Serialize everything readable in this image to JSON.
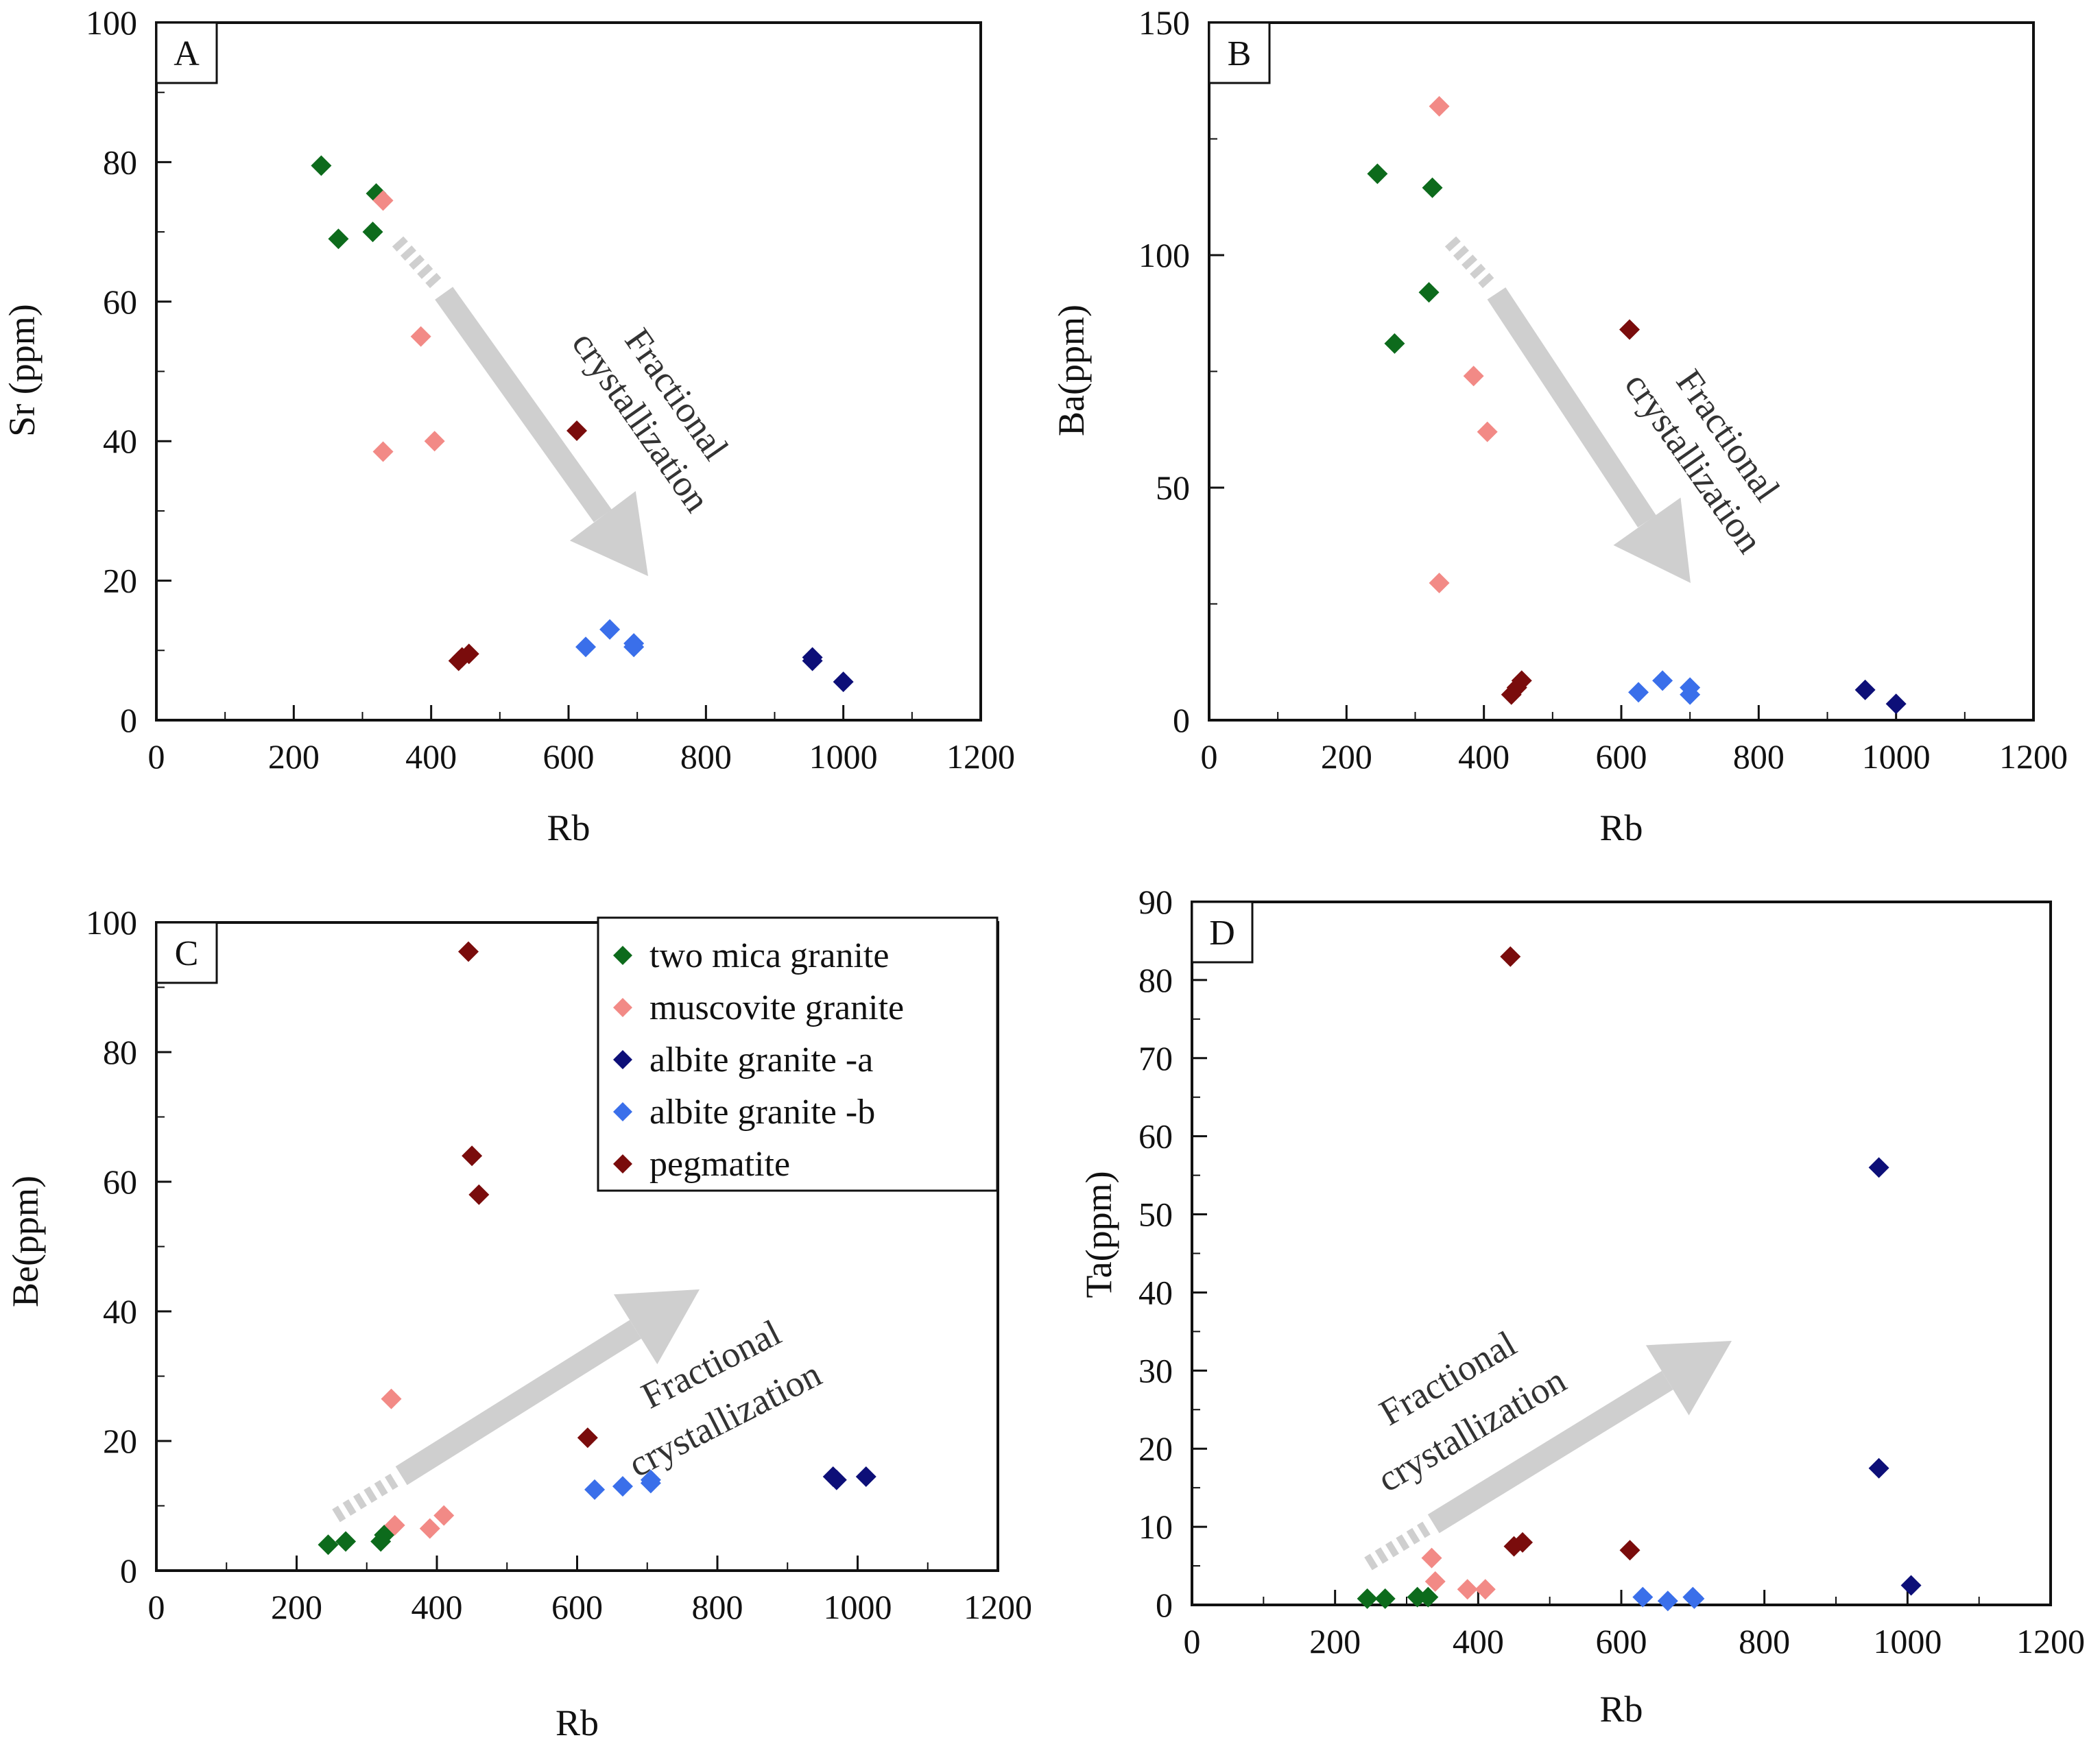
{
  "figure_title": "",
  "colors": {
    "two_mica": "#0d6b1c",
    "muscovite": "#f28a86",
    "albite_a": "#0d0f78",
    "albite_b": "#3a6fea",
    "pegmatite": "#7a0c0c",
    "arrow": "#cfcfcf"
  },
  "legend": {
    "entries": [
      {
        "series": "two_mica",
        "label": "two mica granite"
      },
      {
        "series": "muscovite",
        "label": "muscovite granite"
      },
      {
        "series": "albite_a",
        "label": "albite granite -a"
      },
      {
        "series": "albite_b",
        "label": "albite granite -b"
      },
      {
        "series": "pegmatite",
        "label": "pegmatite"
      }
    ]
  },
  "chart_data": [
    {
      "panel": "A",
      "type": "scatter",
      "xlabel": "Rb",
      "ylabel": "Sr (ppm)",
      "xlim": [
        0,
        1200
      ],
      "ylim": [
        0,
        100
      ],
      "xticks": [
        0,
        200,
        400,
        600,
        800,
        1000,
        1200
      ],
      "yticks": [
        0,
        20,
        40,
        60,
        80,
        100
      ],
      "annotation": {
        "line1": "Fractional",
        "line2": "crystallization",
        "direction": "decreasing"
      },
      "series": [
        {
          "key": "two_mica",
          "name": "two mica granite",
          "points": [
            [
              240,
              79.5
            ],
            [
              320,
              75.5
            ],
            [
              265,
              69
            ],
            [
              315,
              70
            ]
          ]
        },
        {
          "key": "muscovite",
          "name": "muscovite granite",
          "points": [
            [
              330,
              74.5
            ],
            [
              385,
              55
            ],
            [
              330,
              38.5
            ],
            [
              405,
              40
            ]
          ]
        },
        {
          "key": "albite_a",
          "name": "albite granite -a",
          "points": [
            [
              955,
              9
            ],
            [
              955,
              8.5
            ],
            [
              1000,
              5.5
            ]
          ]
        },
        {
          "key": "albite_b",
          "name": "albite granite -b",
          "points": [
            [
              625,
              10.5
            ],
            [
              660,
              13
            ],
            [
              695,
              10.5
            ],
            [
              695,
              11
            ]
          ]
        },
        {
          "key": "pegmatite",
          "name": "pegmatite",
          "points": [
            [
              440,
              8.5
            ],
            [
              445,
              9
            ],
            [
              455,
              9.5
            ],
            [
              612,
              41.5
            ]
          ]
        }
      ]
    },
    {
      "panel": "B",
      "type": "scatter",
      "xlabel": "Rb",
      "ylabel": "Ba(ppm)",
      "xlim": [
        0,
        1200
      ],
      "ylim": [
        0,
        150
      ],
      "xticks": [
        0,
        200,
        400,
        600,
        800,
        1000,
        1200
      ],
      "yticks": [
        0,
        50,
        100,
        150
      ],
      "annotation": {
        "line1": "Fractional",
        "line2": "crystallization",
        "direction": "decreasing"
      },
      "series": [
        {
          "key": "two_mica",
          "name": "two mica granite",
          "points": [
            [
              245,
              117.5
            ],
            [
              325,
              114.5
            ],
            [
              320,
              92
            ],
            [
              270,
              81
            ]
          ]
        },
        {
          "key": "muscovite",
          "name": "muscovite granite",
          "points": [
            [
              335,
              132
            ],
            [
              385,
              74
            ],
            [
              405,
              62
            ],
            [
              335,
              29.5
            ]
          ]
        },
        {
          "key": "albite_a",
          "name": "albite granite -a",
          "points": [
            [
              955,
              6.5
            ],
            [
              1000,
              3.5
            ]
          ]
        },
        {
          "key": "albite_b",
          "name": "albite granite -b",
          "points": [
            [
              625,
              6
            ],
            [
              660,
              8.5
            ],
            [
              700,
              7
            ],
            [
              700,
              5.5
            ]
          ]
        },
        {
          "key": "pegmatite",
          "name": "pegmatite",
          "points": [
            [
              440,
              5.5
            ],
            [
              448,
              7
            ],
            [
              455,
              8.5
            ],
            [
              612,
              84
            ]
          ]
        }
      ]
    },
    {
      "panel": "C",
      "type": "scatter",
      "xlabel": "Rb",
      "ylabel": "Be(ppm)",
      "xlim": [
        0,
        1200
      ],
      "ylim": [
        0,
        100
      ],
      "xticks": [
        0,
        200,
        400,
        600,
        800,
        1000,
        1200
      ],
      "yticks": [
        0,
        20,
        40,
        60,
        80,
        100
      ],
      "annotation": {
        "line1": "Fractional",
        "line2": "crystallization",
        "direction": "increasing"
      },
      "has_legend": true,
      "series": [
        {
          "key": "two_mica",
          "name": "two mica granite",
          "points": [
            [
              245,
              4
            ],
            [
              270,
              4.5
            ],
            [
              320,
              4.5
            ],
            [
              325,
              5.5
            ]
          ]
        },
        {
          "key": "muscovite",
          "name": "muscovite granite",
          "points": [
            [
              335,
              26.5
            ],
            [
              340,
              7
            ],
            [
              390,
              6.5
            ],
            [
              410,
              8.5
            ]
          ]
        },
        {
          "key": "albite_a",
          "name": "albite granite -a",
          "points": [
            [
              965,
              14.5
            ],
            [
              970,
              14
            ],
            [
              1012,
              14.5
            ]
          ]
        },
        {
          "key": "albite_b",
          "name": "albite granite -b",
          "points": [
            [
              625,
              12.5
            ],
            [
              665,
              13
            ],
            [
              705,
              13.5
            ],
            [
              705,
              14
            ]
          ]
        },
        {
          "key": "pegmatite",
          "name": "pegmatite",
          "points": [
            [
              445,
              95.5
            ],
            [
              450,
              64
            ],
            [
              460,
              58
            ],
            [
              615,
              20.5
            ]
          ]
        }
      ]
    },
    {
      "panel": "D",
      "type": "scatter",
      "xlabel": "Rb",
      "ylabel": "Ta(ppm)",
      "xlim": [
        0,
        1200
      ],
      "ylim": [
        0,
        90
      ],
      "xticks": [
        0,
        200,
        400,
        600,
        800,
        1000,
        1200
      ],
      "yticks": [
        0,
        10,
        20,
        30,
        40,
        50,
        60,
        70,
        80,
        90
      ],
      "annotation": {
        "line1": "Fractional",
        "line2": "crystallization",
        "direction": "increasing"
      },
      "series": [
        {
          "key": "two_mica",
          "name": "two mica granite",
          "points": [
            [
              245,
              0.8
            ],
            [
              270,
              0.8
            ],
            [
              315,
              1
            ],
            [
              330,
              1
            ]
          ]
        },
        {
          "key": "muscovite",
          "name": "muscovite granite",
          "points": [
            [
              335,
              6
            ],
            [
              340,
              3
            ],
            [
              385,
              2
            ],
            [
              410,
              2
            ]
          ]
        },
        {
          "key": "albite_a",
          "name": "albite granite -a",
          "points": [
            [
              960,
              56
            ],
            [
              960,
              17.5
            ],
            [
              1005,
              2.5
            ]
          ]
        },
        {
          "key": "albite_b",
          "name": "albite granite -b",
          "points": [
            [
              630,
              1
            ],
            [
              665,
              0.5
            ],
            [
              700,
              1
            ],
            [
              702,
              0.8
            ]
          ]
        },
        {
          "key": "pegmatite",
          "name": "pegmatite",
          "points": [
            [
              445,
              83
            ],
            [
              450,
              7.5
            ],
            [
              462,
              8
            ],
            [
              612,
              7
            ]
          ]
        }
      ]
    }
  ]
}
